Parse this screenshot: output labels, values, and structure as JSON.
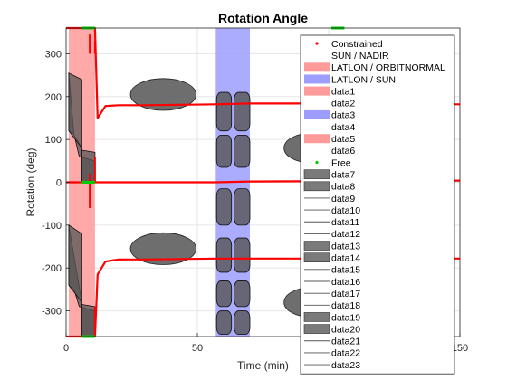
{
  "chart_data": {
    "type": "line",
    "title": "Rotation Angle",
    "xlabel": "Time (min)",
    "ylabel": "Rotation (deg)",
    "xlim": [
      0,
      150
    ],
    "ylim": [
      -360,
      360
    ],
    "xticks": [
      0,
      50,
      100,
      150
    ],
    "yticks": [
      -300,
      -200,
      -100,
      0,
      100,
      200,
      300
    ],
    "grid": true,
    "legend_position": "top-right (overflowing below axes)",
    "colors": {
      "constrained": "#ff0000",
      "free": "#00cc00",
      "pink_band": "#ff9a9a",
      "blue_band": "#9d9dff",
      "dark_patch": "#555555",
      "grid": "#e6e6e6"
    },
    "shaded_intervals": [
      {
        "label": "LATLON / ORBITNORMAL",
        "x": [
          1,
          11
        ],
        "color": "#ff9a9a"
      },
      {
        "label": "LATLON / SUN",
        "x": [
          57,
          70
        ],
        "color": "#9d9dff"
      }
    ],
    "constrained_series": [
      {
        "name": "Constrained",
        "x": [
          0,
          1,
          11,
          12,
          15,
          20,
          30,
          57,
          70,
          110,
          150
        ],
        "y": [
          360,
          360,
          360,
          150,
          178,
          180,
          180,
          182,
          184,
          184,
          182
        ]
      },
      {
        "name": "Constrained (mid)",
        "x": [
          0,
          1,
          11,
          57,
          70,
          150
        ],
        "y": [
          0,
          0,
          0,
          0,
          2,
          4
        ]
      },
      {
        "name": "Constrained (low)",
        "x": [
          0,
          1,
          11,
          12,
          15,
          20,
          30,
          57,
          70,
          110,
          150
        ],
        "y": [
          -360,
          -360,
          -360,
          -215,
          -185,
          -180,
          -180,
          -178,
          -178,
          -178,
          -178
        ]
      }
    ],
    "free_segments": [
      {
        "x": [
          6,
          11
        ],
        "y": 360
      },
      {
        "x": [
          6,
          11
        ],
        "y": 0
      },
      {
        "x": [
          6,
          11
        ],
        "y": -360
      }
    ],
    "ellipses": [
      {
        "cx": 37,
        "cy": 205,
        "rx": 12.5,
        "ry": 60
      },
      {
        "cx": 37,
        "cy": -155,
        "rx": 12.5,
        "ry": 60
      },
      {
        "cx": 93,
        "cy": 80,
        "rx": 10,
        "ry": 55
      },
      {
        "cx": 93,
        "cy": -280,
        "rx": 10,
        "ry": 55
      }
    ],
    "legend": [
      {
        "label": "Constrained",
        "kind": "dot",
        "color": "#ff0000"
      },
      {
        "label": "SUN / NADIR",
        "kind": "none"
      },
      {
        "label": "LATLON / ORBITNORMAL",
        "kind": "patch",
        "color": "#ff9a9a"
      },
      {
        "label": "LATLON / SUN",
        "kind": "patch",
        "color": "#9d9dff"
      },
      {
        "label": "data1",
        "kind": "patch",
        "color": "#ff9a9a"
      },
      {
        "label": "data2",
        "kind": "none"
      },
      {
        "label": "data3",
        "kind": "patch",
        "color": "#9d9dff"
      },
      {
        "label": "data4",
        "kind": "none"
      },
      {
        "label": "data5",
        "kind": "patch",
        "color": "#ff9a9a"
      },
      {
        "label": "data6",
        "kind": "none"
      },
      {
        "label": "Free",
        "kind": "dot",
        "color": "#00cc00"
      },
      {
        "label": "data7",
        "kind": "patch",
        "color": "#7a7a7a"
      },
      {
        "label": "data8",
        "kind": "patch",
        "color": "#7a7a7a"
      },
      {
        "label": "data9",
        "kind": "line",
        "color": "#555555"
      },
      {
        "label": "data10",
        "kind": "line",
        "color": "#555555"
      },
      {
        "label": "data11",
        "kind": "line",
        "color": "#555555"
      },
      {
        "label": "data12",
        "kind": "line",
        "color": "#555555"
      },
      {
        "label": "data13",
        "kind": "patch",
        "color": "#7a7a7a"
      },
      {
        "label": "data14",
        "kind": "patch",
        "color": "#7a7a7a"
      },
      {
        "label": "data15",
        "kind": "line",
        "color": "#555555"
      },
      {
        "label": "data16",
        "kind": "line",
        "color": "#555555"
      },
      {
        "label": "data17",
        "kind": "line",
        "color": "#555555"
      },
      {
        "label": "data18",
        "kind": "line",
        "color": "#555555"
      },
      {
        "label": "data19",
        "kind": "patch",
        "color": "#7a7a7a"
      },
      {
        "label": "data20",
        "kind": "patch",
        "color": "#7a7a7a"
      },
      {
        "label": "data21",
        "kind": "line",
        "color": "#555555"
      },
      {
        "label": "data22",
        "kind": "line",
        "color": "#555555"
      },
      {
        "label": "data23",
        "kind": "line",
        "color": "#555555"
      }
    ]
  }
}
